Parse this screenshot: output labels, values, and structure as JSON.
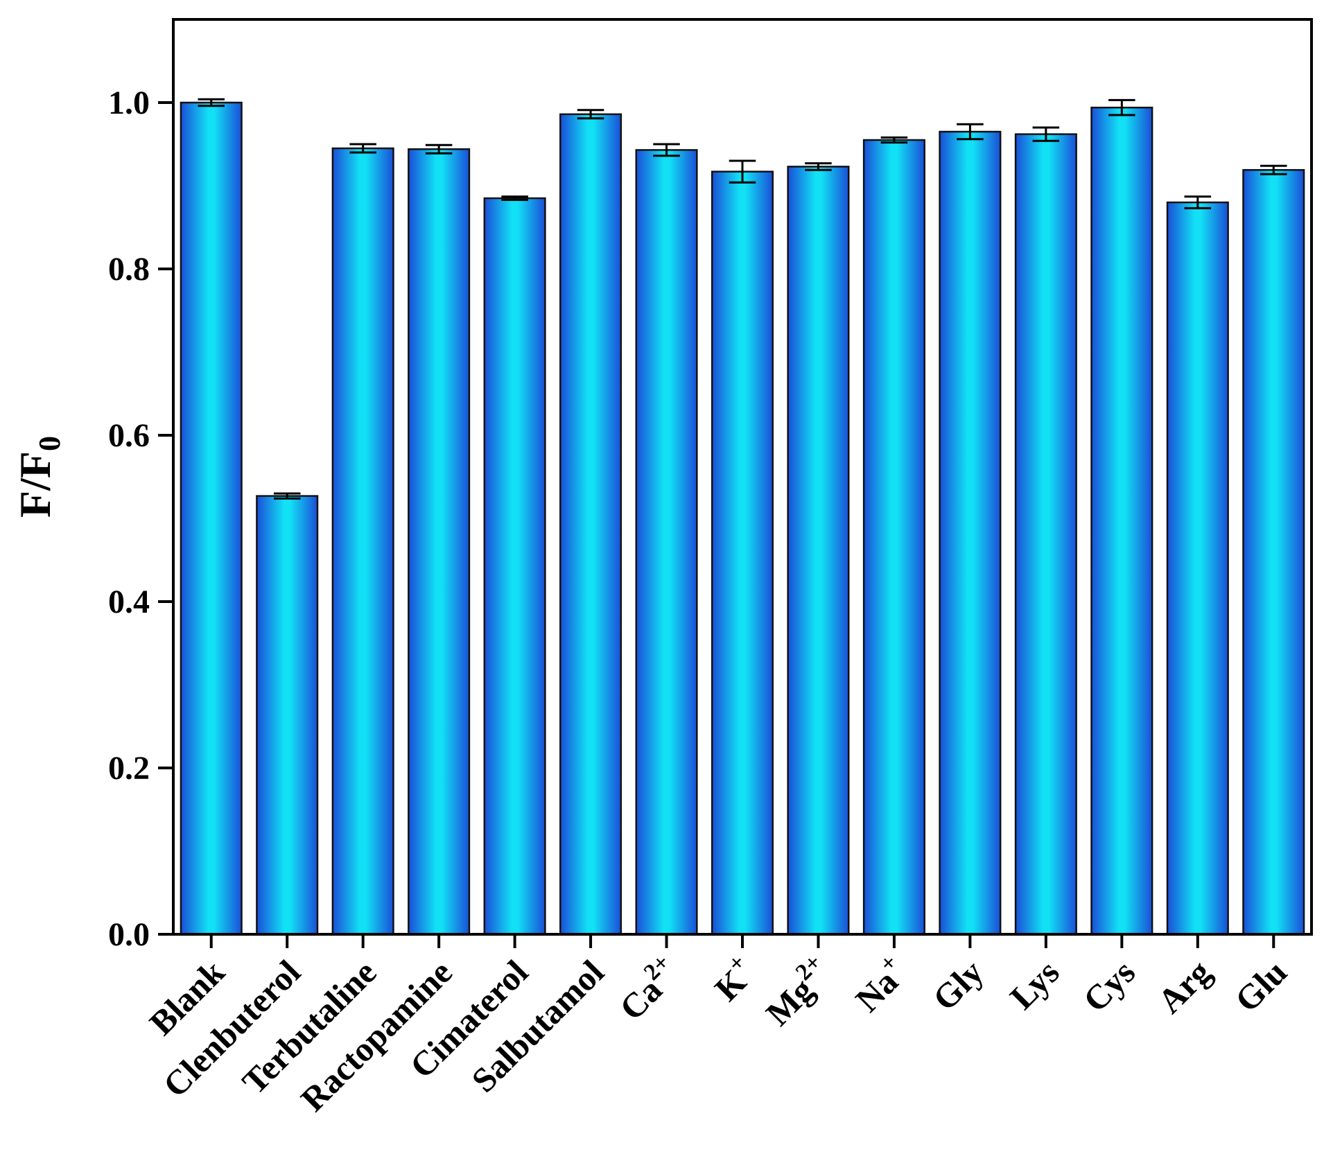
{
  "chart_data": {
    "type": "bar",
    "title": "",
    "xlabel": "",
    "ylabel": "F/F",
    "ylabel_sub": "0",
    "ylim": [
      0,
      1.1
    ],
    "yticks": [
      "0.0",
      "0.2",
      "0.4",
      "0.6",
      "0.8",
      "1.0"
    ],
    "grid": false,
    "error_bars": true,
    "bar_color": "#1fb8f0",
    "categories": [
      {
        "base": "Blank",
        "sup": ""
      },
      {
        "base": "Clenbuterol",
        "sup": ""
      },
      {
        "base": "Terbutaline",
        "sup": ""
      },
      {
        "base": "Ractopamine",
        "sup": ""
      },
      {
        "base": "Cimaterol",
        "sup": ""
      },
      {
        "base": "Salbutamol",
        "sup": ""
      },
      {
        "base": "Ca",
        "sup": "2+"
      },
      {
        "base": "K",
        "sup": "+"
      },
      {
        "base": "Mg",
        "sup": "2+"
      },
      {
        "base": "Na",
        "sup": "+"
      },
      {
        "base": "Gly",
        "sup": ""
      },
      {
        "base": "Lys",
        "sup": ""
      },
      {
        "base": "Cys",
        "sup": ""
      },
      {
        "base": "Arg",
        "sup": ""
      },
      {
        "base": "Glu",
        "sup": ""
      }
    ],
    "values": [
      1.0,
      0.527,
      0.945,
      0.944,
      0.885,
      0.986,
      0.943,
      0.917,
      0.923,
      0.955,
      0.965,
      0.962,
      0.994,
      0.88,
      0.919
    ],
    "errors": [
      0.004,
      0.003,
      0.005,
      0.005,
      0.002,
      0.005,
      0.007,
      0.013,
      0.004,
      0.003,
      0.009,
      0.008,
      0.009,
      0.007,
      0.005
    ]
  }
}
